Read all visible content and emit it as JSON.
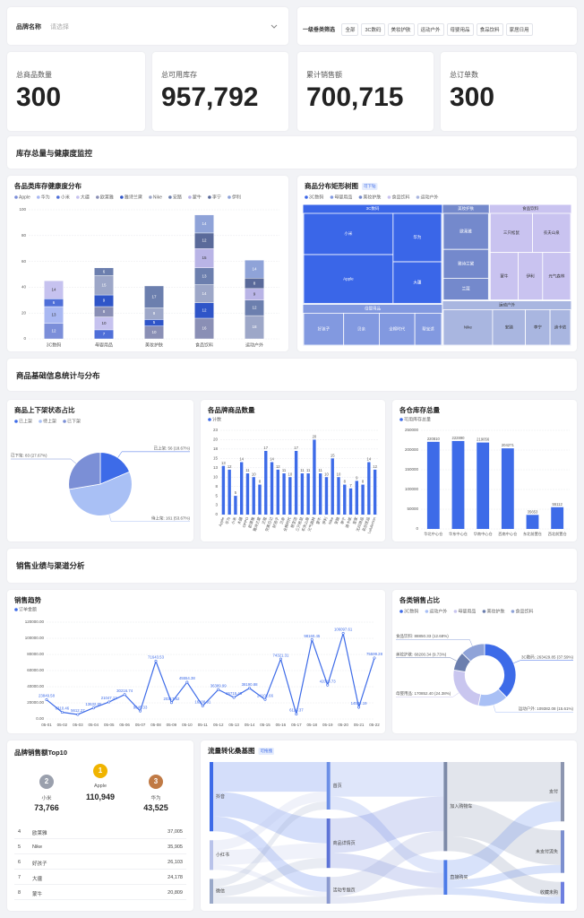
{
  "filters": {
    "brand_label": "品牌名称",
    "brand_placeholder": "请选择",
    "category_label": "一级垂类筛选",
    "category_options": [
      "全部",
      "3C数码",
      "美妆护肤",
      "运动户外",
      "母婴用品",
      "食品饮料",
      "家居日用"
    ]
  },
  "kpis": [
    {
      "label": "总商品数量",
      "value": "300"
    },
    {
      "label": "总可用库存",
      "value": "957,792"
    },
    {
      "label": "累计销售额",
      "value": "700,715"
    },
    {
      "label": "总订单数",
      "value": "300"
    }
  ],
  "sections": [
    "库存总量与健康度监控",
    "商品基础信息统计与分布",
    "销售业绩与渠道分析"
  ],
  "chart_data": [
    {
      "type": "stacked_bar",
      "title": "各品类库存健康度分布",
      "categories": [
        "3C数码",
        "母婴用品",
        "美妆护肤",
        "食品饮料",
        "运动户外"
      ],
      "ylim": [
        0,
        100
      ],
      "yticks": [
        0,
        20,
        40,
        60,
        80,
        100
      ],
      "grid": true,
      "series": [
        {
          "name": "Apple",
          "color": "#7b8ed9",
          "values": [
            12,
            null,
            null,
            null,
            null
          ]
        },
        {
          "name": "华为",
          "color": "#a9b8f2",
          "values": [
            13,
            null,
            null,
            null,
            null
          ]
        },
        {
          "name": "小米",
          "color": "#4f6fd8",
          "values": [
            6,
            7,
            null,
            null,
            null
          ]
        },
        {
          "name": "大疆",
          "color": "#c6c2ef",
          "values": [
            14,
            10,
            null,
            null,
            null
          ]
        },
        {
          "name": "欧莱雅",
          "color": "#8a8fb5",
          "values": [
            null,
            8,
            10,
            16,
            null
          ]
        },
        {
          "name": "雅诗兰黛",
          "color": "#2f55c8",
          "values": [
            null,
            9,
            5,
            12,
            null
          ]
        },
        {
          "name": "Nike",
          "color": "#9da7c8",
          "values": [
            null,
            15,
            9,
            14,
            18
          ]
        },
        {
          "name": "安踏",
          "color": "#6c7fae",
          "values": [
            null,
            6,
            17,
            13,
            12
          ]
        },
        {
          "name": "蒙牛",
          "color": "#b9b4e6",
          "values": [
            null,
            null,
            null,
            15,
            9
          ]
        },
        {
          "name": "李宁",
          "color": "#5a6a9a",
          "values": [
            null,
            null,
            null,
            12,
            8
          ]
        },
        {
          "name": "伊利",
          "color": "#8fa3d8",
          "values": [
            null,
            null,
            null,
            14,
            14
          ]
        }
      ]
    },
    {
      "type": "treemap",
      "title": "商品分布矩形树图",
      "subtitle": "可下钻",
      "groups": [
        {
          "name": "3C数码",
          "color": "#3a66e8",
          "children": [
            {
              "name": "小米",
              "value": 22
            },
            {
              "name": "Apple",
              "value": 26
            },
            {
              "name": "华为",
              "value": 14
            },
            {
              "name": "大疆",
              "value": 12
            }
          ]
        },
        {
          "name": "母婴用品",
          "color": "#8299e0",
          "children": [
            {
              "name": "好孩子",
              "value": 9
            },
            {
              "name": "贝亲",
              "value": 8
            },
            {
              "name": "全棉时代",
              "value": 8
            },
            {
              "name": "帮宝适",
              "value": 6
            }
          ]
        },
        {
          "name": "美妆护肤",
          "color": "#7489cc",
          "children": [
            {
              "name": "欧莱雅",
              "value": 10
            },
            {
              "name": "雅诗兰黛",
              "value": 8
            },
            {
              "name": "兰蔻",
              "value": 6
            }
          ]
        },
        {
          "name": "食品饮料",
          "color": "#c9c3f0",
          "children": [
            {
              "name": "三只松鼠",
              "value": 10
            },
            {
              "name": "农夫山泉",
              "value": 9
            },
            {
              "name": "蒙牛",
              "value": 8
            },
            {
              "name": "伊利",
              "value": 7
            },
            {
              "name": "元气森林",
              "value": 8
            }
          ]
        },
        {
          "name": "运动户外",
          "color": "#a9b6e0",
          "children": [
            {
              "name": "Nike",
              "value": 12
            },
            {
              "name": "安踏",
              "value": 8
            },
            {
              "name": "李宁",
              "value": 6
            },
            {
              "name": "迪卡侬",
              "value": 5
            }
          ]
        }
      ]
    },
    {
      "type": "pie",
      "title": "商品上下架状态占比",
      "categories": [
        "已上架",
        "待上架",
        "已下架"
      ],
      "values": [
        56,
        161,
        83
      ],
      "value_labels": [
        "已上架: 56 (18.67%)",
        "待上架: 161 (53.67%)",
        "已下架: 83 (27.67%)"
      ],
      "colors": [
        "#3d6be8",
        "#a9c0f5",
        "#7b8fd6"
      ]
    },
    {
      "type": "bar",
      "title": "各品牌商品数量",
      "categories": [
        "Apple",
        "华为",
        "小米",
        "大疆",
        "OPPO",
        "欧莱雅",
        "雅诗兰黛",
        "兰蔻",
        "完美日记",
        "好孩子",
        "贝亲",
        "全棉时代",
        "帮宝适",
        "三只松鼠",
        "农夫山泉",
        "元气森林",
        "蒙牛",
        "伊利",
        "Nike",
        "安踏",
        "李宁",
        "迪卡侬",
        "宜家",
        "无印良品",
        "名创优品",
        "Lululemon"
      ],
      "series": [
        {
          "name": "计数",
          "color": "#3d6be8",
          "values": [
            13,
            12,
            5,
            14,
            11,
            10,
            8,
            17,
            14,
            12,
            11,
            10,
            17,
            11,
            11,
            20,
            11,
            10,
            15,
            10,
            8,
            7,
            9,
            8,
            14,
            12
          ]
        }
      ],
      "ylim": [
        0,
        22.5
      ],
      "yticks": [
        0,
        {
          "value": 2.5,
          "label": "3"
        },
        5,
        {
          "value": 7.5,
          "label": "8"
        },
        10,
        {
          "value": 12.5,
          "label": "13"
        },
        15,
        {
          "value": 17.5,
          "label": "18"
        },
        20,
        {
          "value": 22.5,
          "label": "23"
        }
      ],
      "grid": true
    },
    {
      "type": "bar",
      "title": "各仓库存总量",
      "categories": [
        "华北中心仓",
        "华东中心仓",
        "华南中心仓",
        "西南中心仓",
        "东北前置仓",
        "西北前置仓"
      ],
      "series": [
        {
          "name": "可用库存总量",
          "color": "#3d6be8",
          "values": [
            220810,
            222890,
            219056,
            204271,
            35653,
            55112
          ]
        }
      ],
      "ylim": [
        0,
        250000
      ],
      "yticks": [
        0,
        50000,
        100000,
        150000,
        200000,
        250000
      ],
      "grid": true
    },
    {
      "type": "line",
      "title": "销售趋势",
      "x": [
        "05-01",
        "05-02",
        "05-03",
        "05-04",
        "05-05",
        "05-06",
        "05-07",
        "05-08",
        "05-09",
        "05-10",
        "05-11",
        "05-12",
        "05-13",
        "05-14",
        "05-15",
        "05-16",
        "05-17",
        "05-18",
        "05-19",
        "05-20",
        "05-21",
        "05-22"
      ],
      "series": [
        {
          "name": "订单金额",
          "color": "#3d6be8",
          "values": [
            23849.58,
            8310.46,
            5612.27,
            13632.85,
            21047.12,
            30216.74,
            9845.33,
            71643.53,
            20317.62,
            45554.38,
            16208.91,
            36389.99,
            26715.48,
            38190.88,
            24102.66,
            74321.31,
            6120.37,
            98160.45,
            42018.73,
            106097.61,
            14532.19,
            75599.28
          ]
        }
      ],
      "ylim": [
        0,
        120000
      ],
      "yticks": [
        {
          "value": 0,
          "label": "0.00"
        },
        {
          "value": 20000,
          "label": "20000.00"
        },
        {
          "value": 40000,
          "label": "40000.00"
        },
        {
          "value": 60000,
          "label": "60000.00"
        },
        {
          "value": 80000,
          "label": "80000.00"
        },
        {
          "value": 100000,
          "label": "100000.00"
        },
        {
          "value": 120000,
          "label": "120000.00"
        }
      ],
      "grid": true
    },
    {
      "type": "donut",
      "title": "各类销售占比",
      "categories": [
        "3C数码",
        "运动户外",
        "母婴用品",
        "美妆护肤",
        "食品饮料"
      ],
      "values": [
        263429.85,
        109382.08,
        170852.4,
        68200.34,
        88850.33
      ],
      "value_labels": [
        "3C数码: 263429.85 (37.59%)",
        "运动户外: 109382.08 (15.61%)",
        "母婴用品: 170852.40 (24.38%)",
        "美妆护肤: 68200.34 (9.73%)",
        "食品饮料: 88850.33 (12.68%)"
      ],
      "colors": [
        "#3d6be8",
        "#a9c0f5",
        "#c9c6ef",
        "#6c7fae",
        "#8fa3d8"
      ]
    },
    {
      "type": "sankey",
      "title": "流量转化桑基图",
      "subtitle": "可拖拽",
      "nodes": [
        {
          "name": "抖音",
          "color": "#3d6be8"
        },
        {
          "name": "小红书",
          "color": "#b9c3ea"
        },
        {
          "name": "微信",
          "color": "#9aa9c9"
        },
        {
          "name": "首页",
          "color": "#6c8fe6"
        },
        {
          "name": "商品详情页",
          "color": "#5d73d6"
        },
        {
          "name": "活动专题页",
          "color": "#8b9ad0"
        },
        {
          "name": "加入购物车",
          "color": "#7d8aa8"
        },
        {
          "name": "直接购买",
          "color": "#4d7be8"
        },
        {
          "name": "支付",
          "color": "#8d96b0"
        },
        {
          "name": "未支付流失",
          "color": "#7c8fcf"
        },
        {
          "name": "收藏未购",
          "color": "#6e7fe0"
        }
      ],
      "links": [
        {
          "source": "抖音",
          "target": "首页",
          "value": 30
        },
        {
          "source": "抖音",
          "target": "商品详情页",
          "value": 25
        },
        {
          "source": "抖音",
          "target": "活动专题页",
          "value": 15
        },
        {
          "source": "小红书",
          "target": "首页",
          "value": 10
        },
        {
          "source": "小红书",
          "target": "商品详情页",
          "value": 15
        },
        {
          "source": "小红书",
          "target": "活动专题页",
          "value": 5
        },
        {
          "source": "微信",
          "target": "首页",
          "value": 8
        },
        {
          "source": "微信",
          "target": "商品详情页",
          "value": 10
        },
        {
          "source": "微信",
          "target": "活动专题页",
          "value": 7
        },
        {
          "source": "首页",
          "target": "加入购物车",
          "value": 35
        },
        {
          "source": "首页",
          "target": "直接购买",
          "value": 13
        },
        {
          "source": "商品详情页",
          "target": "加入购物车",
          "value": 35
        },
        {
          "source": "商品详情页",
          "target": "直接购买",
          "value": 15
        },
        {
          "source": "活动专题页",
          "target": "加入购物车",
          "value": 20
        },
        {
          "source": "活动专题页",
          "target": "直接购买",
          "value": 7
        },
        {
          "source": "加入购物车",
          "target": "支付",
          "value": 40
        },
        {
          "source": "加入购物车",
          "target": "未支付流失",
          "value": 35
        },
        {
          "source": "加入购物车",
          "target": "收藏未购",
          "value": 15
        },
        {
          "source": "直接购买",
          "target": "支付",
          "value": 20
        },
        {
          "source": "直接购买",
          "target": "未支付流失",
          "value": 8
        },
        {
          "source": "直接购买",
          "target": "收藏未购",
          "value": 7
        }
      ]
    }
  ],
  "top10": {
    "title": "品牌销售额Top10",
    "podium": [
      {
        "rank": "2",
        "name": "小米",
        "value": "73,766"
      },
      {
        "rank": "1",
        "name": "Apple",
        "value": "110,949"
      },
      {
        "rank": "3",
        "name": "华为",
        "value": "43,525"
      }
    ],
    "rows": [
      {
        "rank": "4",
        "name": "欧莱雅",
        "value": "37,005"
      },
      {
        "rank": "5",
        "name": "Nike",
        "value": "35,905"
      },
      {
        "rank": "6",
        "name": "好孩子",
        "value": "26,103"
      },
      {
        "rank": "7",
        "name": "大疆",
        "value": "24,178"
      },
      {
        "rank": "8",
        "name": "蒙牛",
        "value": "20,809"
      }
    ]
  }
}
